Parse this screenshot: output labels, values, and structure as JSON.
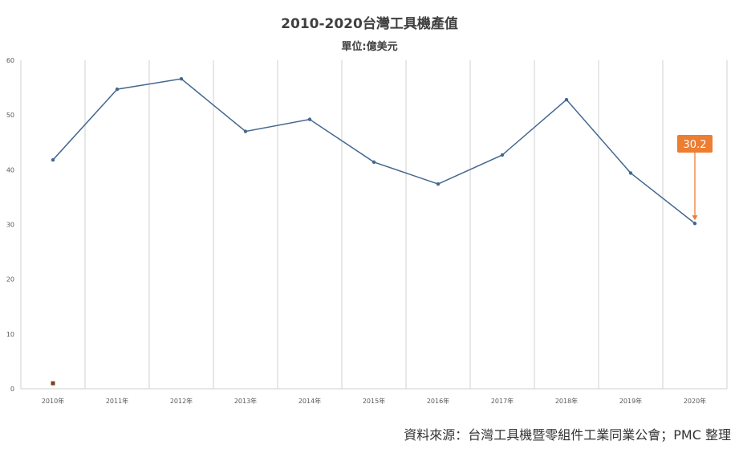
{
  "chart_data": {
    "type": "line",
    "title": "2010-2020台灣工具機產值",
    "subtitle": "單位:億美元",
    "categories": [
      "2010年",
      "2011年",
      "2012年",
      "2013年",
      "2014年",
      "2015年",
      "2016年",
      "2017年",
      "2018年",
      "2019年",
      "2020年"
    ],
    "series": [
      {
        "values": [
          41.8,
          54.7,
          56.6,
          47.0,
          49.2,
          41.4,
          37.4,
          42.7,
          52.8,
          39.4,
          30.2
        ]
      }
    ],
    "yticks": [
      "0",
      "10",
      "20",
      "30",
      "40",
      "50",
      "60"
    ],
    "ylim": [
      0,
      60
    ],
    "grid": "vertical",
    "legend_marker_value": 1,
    "annotation": {
      "category": "2020年",
      "text": "30.2"
    },
    "colors": {
      "line": "#44688f",
      "grid": "#d0d0d0",
      "callout": "#ed7d31",
      "marker": "#7f3f1f"
    }
  },
  "source": "資料來源：台灣工具機暨零組件工業同業公會；PMC 整理"
}
